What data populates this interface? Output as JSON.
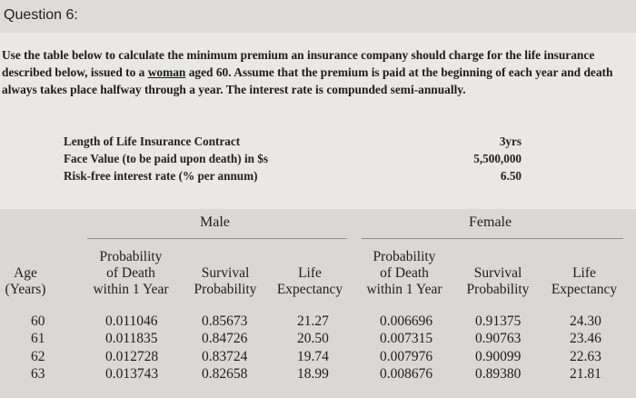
{
  "question": {
    "title": "Question 6:",
    "prompt_before": "Use the table below to calculate the minimum premium an insurance company should charge for the life insurance described below, issued to a ",
    "prompt_underlined": "woman",
    "prompt_after": " aged 60. Assume that the premium is paid at the beginning of each year and death always takes place halfway through a year. The interest rate is compunded semi-annually."
  },
  "parameters": [
    {
      "label": "Length of Life Insurance Contract",
      "value": "3yrs"
    },
    {
      "label": "Face Value (to be paid upon death) in $s",
      "value": "5,500,000"
    },
    {
      "label": "Risk-free interest rate (% per annum)",
      "value": "6.50"
    }
  ],
  "table": {
    "group_male": "Male",
    "group_female": "Female",
    "headers": {
      "age_1": "Age",
      "age_2": "(Years)",
      "m_prob_1": "Probability",
      "m_prob_2": "of Death",
      "m_prob_3": "within 1 Year",
      "m_surv_1": "Survival",
      "m_surv_2": "Probability",
      "m_life_1": "Life",
      "m_life_2": "Expectancy",
      "f_prob_1": "Probability",
      "f_prob_2": "of Death",
      "f_prob_3": "within 1 Year",
      "f_surv_1": "Survival",
      "f_surv_2": "Probability",
      "f_life_1": "Life",
      "f_life_2": "Expectancy"
    },
    "rows": [
      {
        "age": "60",
        "m_prob": "0.011046",
        "m_surv": "0.85673",
        "m_life": "21.27",
        "f_prob": "0.006696",
        "f_surv": "0.91375",
        "f_life": "24.30"
      },
      {
        "age": "61",
        "m_prob": "0.011835",
        "m_surv": "0.84726",
        "m_life": "20.50",
        "f_prob": "0.007315",
        "f_surv": "0.90763",
        "f_life": "23.46"
      },
      {
        "age": "62",
        "m_prob": "0.012728",
        "m_surv": "0.83724",
        "m_life": "19.74",
        "f_prob": "0.007976",
        "f_surv": "0.90099",
        "f_life": "22.63"
      },
      {
        "age": "63",
        "m_prob": "0.013743",
        "m_surv": "0.82658",
        "m_life": "18.99",
        "f_prob": "0.008676",
        "f_surv": "0.89380",
        "f_life": "21.81"
      }
    ]
  }
}
